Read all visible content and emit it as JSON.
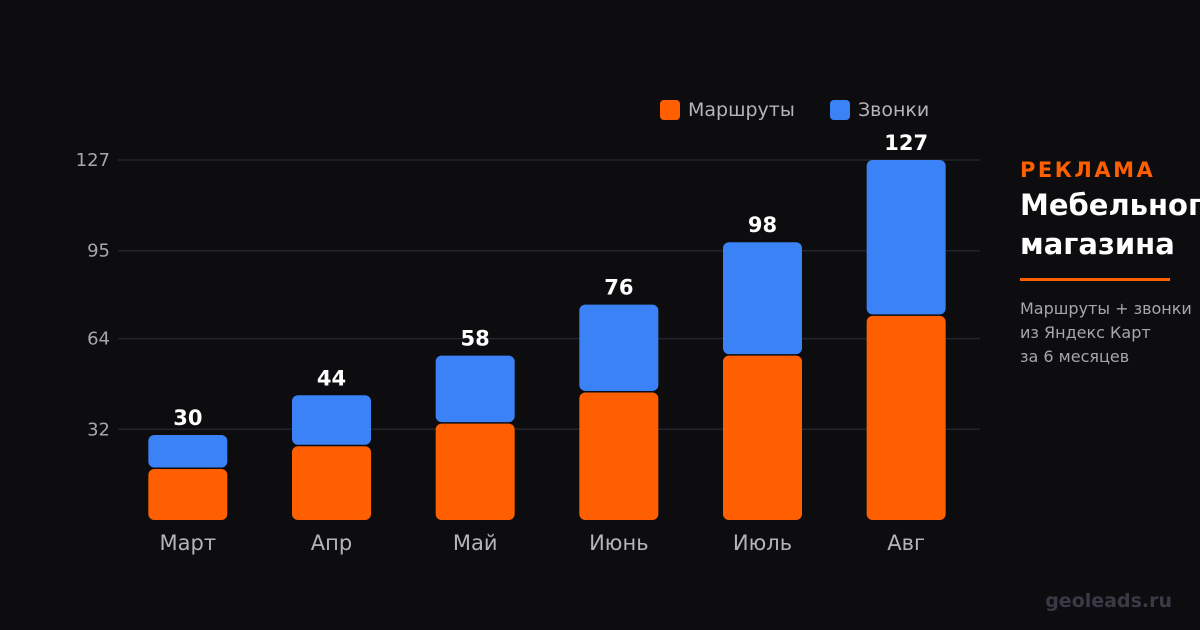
{
  "chart_data": {
    "type": "bar",
    "stacked": true,
    "categories": [
      "Март",
      "Апр",
      "Май",
      "Июнь",
      "Июль",
      "Авг"
    ],
    "series": [
      {
        "name": "Маршруты",
        "color": "#ff5f00",
        "values": [
          18,
          26,
          34,
          45,
          58,
          72
        ]
      },
      {
        "name": "Звонки",
        "color": "#3b82f6",
        "values": [
          12,
          18,
          24,
          31,
          40,
          55
        ]
      }
    ],
    "totals": [
      "30",
      "44",
      "58",
      "76",
      "98",
      "127"
    ],
    "yticks": [
      "32",
      "64",
      "95",
      "127"
    ],
    "ylim": [
      0,
      127
    ],
    "grid": true,
    "legend": "top-right"
  },
  "side": {
    "kicker": "РЕКЛАМА",
    "title_line1": "Мебельного",
    "title_line2": "магазина",
    "desc_line1": "Маршруты + звонки",
    "desc_line2": "из Яндекс Карт",
    "desc_line3": "за 6 месяцев"
  },
  "watermark": "geoleads.ru"
}
